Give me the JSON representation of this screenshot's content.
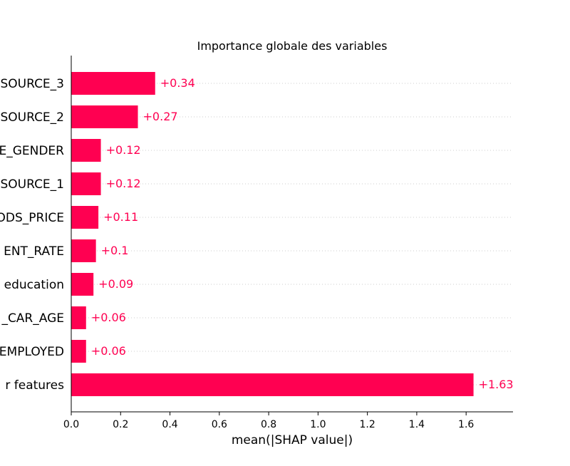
{
  "chart_data": {
    "type": "bar",
    "orientation": "horizontal",
    "title": "Importance globale des variables",
    "xlabel": "mean(|SHAP value|)",
    "ylabel": "",
    "xlim": [
      0,
      1.79
    ],
    "xticks": [
      0.0,
      0.2,
      0.4,
      0.6,
      0.8,
      1.0,
      1.2,
      1.4,
      1.6
    ],
    "xtick_labels": [
      "0.0",
      "0.2",
      "0.4",
      "0.6",
      "0.8",
      "1.0",
      "1.2",
      "1.4",
      "1.6"
    ],
    "grid": "horizontal dotted lines per bar",
    "bar_color": "#ff0051",
    "value_label_color": "#ff0051",
    "categories": [
      "SOURCE_3",
      "SOURCE_2",
      "E_GENDER",
      "SOURCE_1",
      "ODS_PRICE",
      "ENT_RATE",
      "education",
      "_CAR_AGE",
      "EMPLOYED",
      "r features"
    ],
    "values": [
      0.34,
      0.27,
      0.12,
      0.12,
      0.11,
      0.1,
      0.09,
      0.06,
      0.06,
      1.63
    ],
    "value_labels": [
      "+0.34",
      "+0.27",
      "+0.12",
      "+0.12",
      "+0.11",
      "+0.1",
      "+0.09",
      "+0.06",
      "+0.06",
      "+1.63"
    ]
  }
}
